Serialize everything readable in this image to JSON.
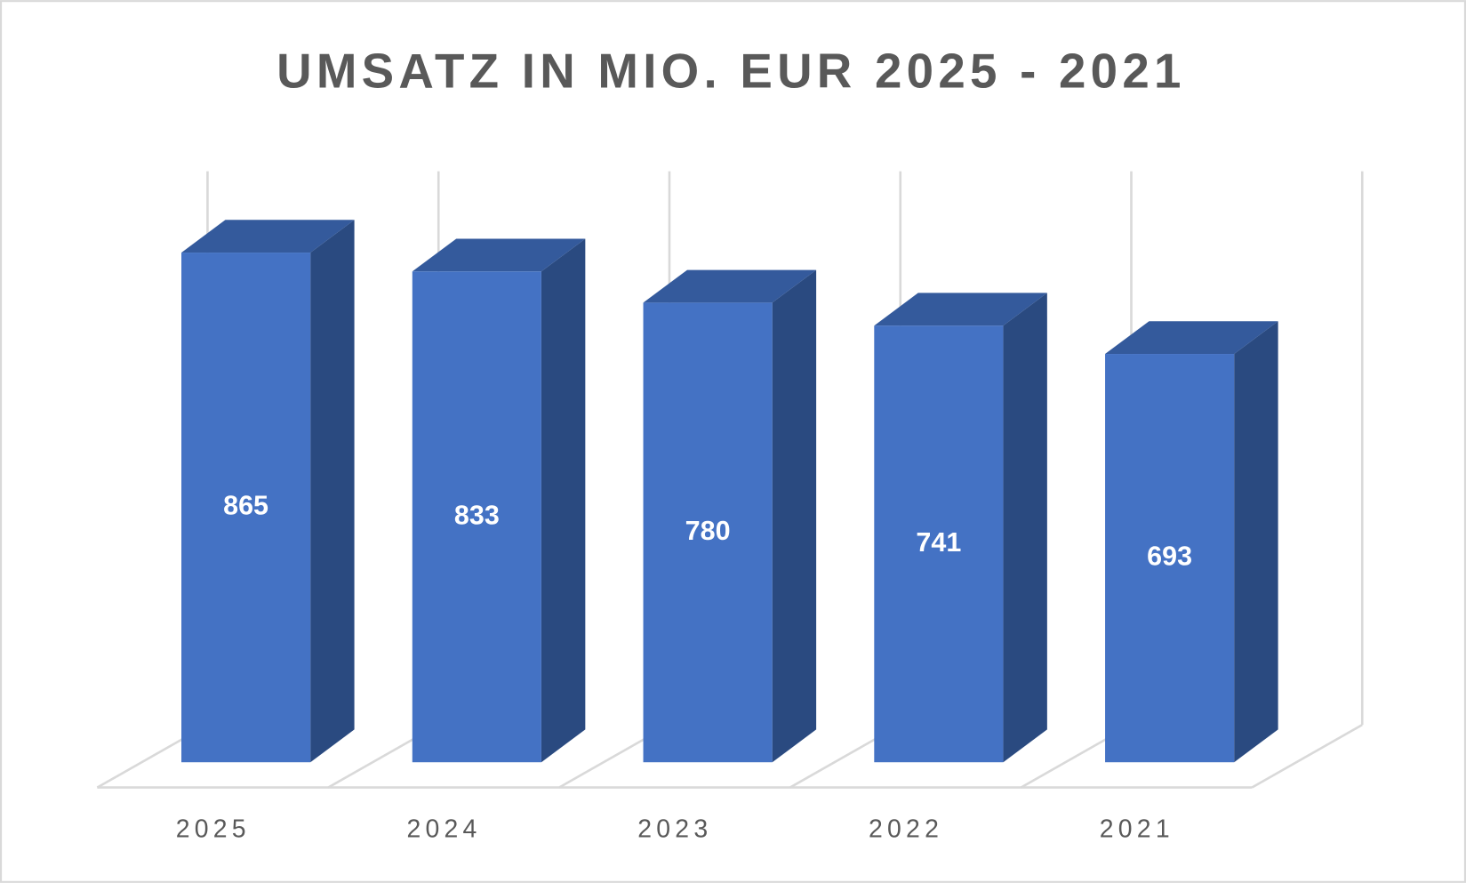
{
  "chart_data": {
    "type": "bar3d",
    "title": "UMSATZ IN MIO. EUR 2025 - 2021",
    "categories": [
      "2025",
      "2024",
      "2023",
      "2022",
      "2021"
    ],
    "values": [
      865,
      833,
      780,
      741,
      693
    ],
    "color": "#4472c4"
  }
}
